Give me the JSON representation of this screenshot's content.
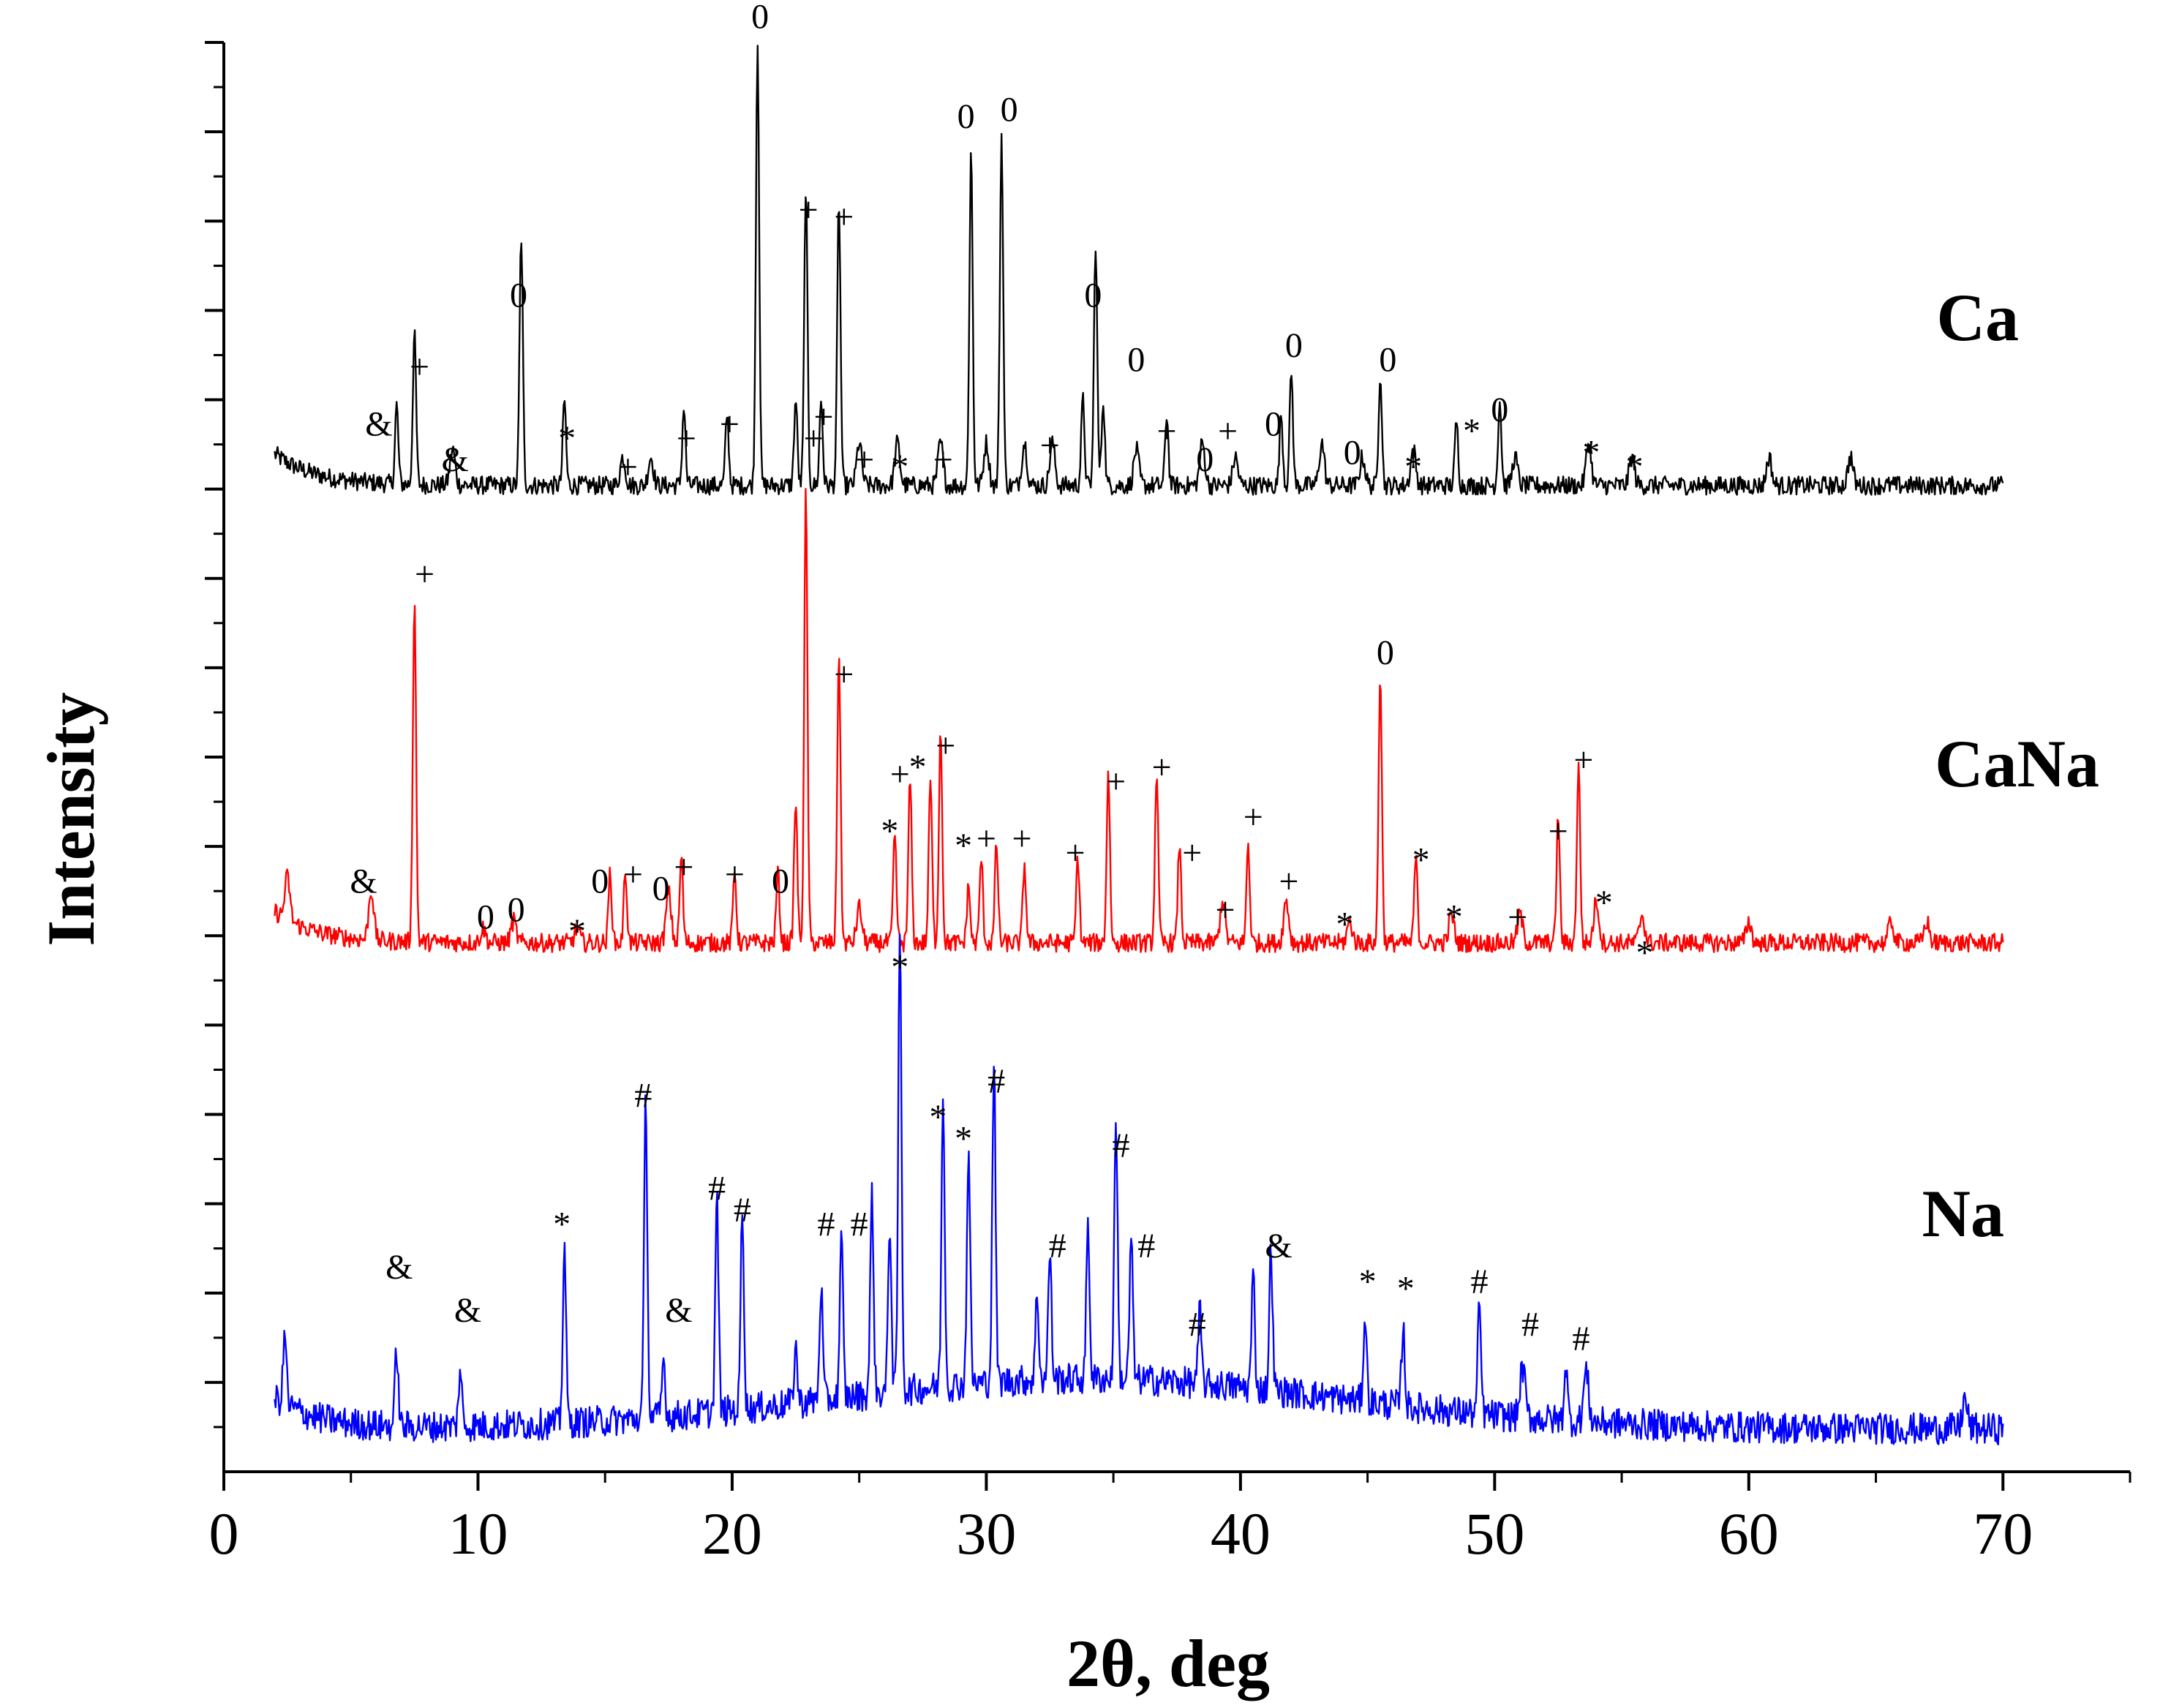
{
  "chart_data": {
    "type": "line",
    "title": "",
    "xlabel": "2θ, deg",
    "ylabel": "Intensity",
    "xlim": [
      0,
      75
    ],
    "ylim": [
      0,
      100
    ],
    "x_ticks": [
      0,
      10,
      20,
      30,
      40,
      50,
      60,
      70
    ],
    "x_tick_labels": [
      "0",
      "10",
      "20",
      "30",
      "40",
      "50",
      "60",
      "70"
    ],
    "y_ticks_major_count": 16,
    "legend": "none",
    "series": [
      {
        "name": "Ca",
        "color": "#000000",
        "baseline": 69,
        "x_range": [
          2,
          70
        ],
        "peaks": [
          {
            "x": 6.8,
            "h": 5.5
          },
          {
            "x": 7.5,
            "h": 10.5
          },
          {
            "x": 9.0,
            "h": 2.5
          },
          {
            "x": 11.7,
            "h": 17.5
          },
          {
            "x": 13.4,
            "h": 6
          },
          {
            "x": 15.7,
            "h": 2
          },
          {
            "x": 16.8,
            "h": 2
          },
          {
            "x": 18.1,
            "h": 5.5
          },
          {
            "x": 19.8,
            "h": 5
          },
          {
            "x": 21.0,
            "h": 31
          },
          {
            "x": 22.5,
            "h": 6
          },
          {
            "x": 22.9,
            "h": 21
          },
          {
            "x": 23.5,
            "h": 6
          },
          {
            "x": 24.2,
            "h": 20
          },
          {
            "x": 25.0,
            "h": 3
          },
          {
            "x": 26.5,
            "h": 3
          },
          {
            "x": 28.2,
            "h": 3
          },
          {
            "x": 29.4,
            "h": 23.5
          },
          {
            "x": 30.0,
            "h": 3
          },
          {
            "x": 30.6,
            "h": 24.5
          },
          {
            "x": 31.5,
            "h": 3
          },
          {
            "x": 32.6,
            "h": 3
          },
          {
            "x": 33.8,
            "h": 6
          },
          {
            "x": 34.3,
            "h": 17
          },
          {
            "x": 34.6,
            "h": 6
          },
          {
            "x": 35.9,
            "h": 2.5
          },
          {
            "x": 37.1,
            "h": 5
          },
          {
            "x": 38.5,
            "h": 3
          },
          {
            "x": 39.8,
            "h": 2
          },
          {
            "x": 41.6,
            "h": 5
          },
          {
            "x": 42.0,
            "h": 8
          },
          {
            "x": 43.2,
            "h": 3
          },
          {
            "x": 44.8,
            "h": 2
          },
          {
            "x": 45.5,
            "h": 8
          },
          {
            "x": 46.8,
            "h": 2.5
          },
          {
            "x": 48.5,
            "h": 4.5
          },
          {
            "x": 50.2,
            "h": 6
          },
          {
            "x": 50.8,
            "h": 2
          },
          {
            "x": 53.7,
            "h": 3
          },
          {
            "x": 55.4,
            "h": 2
          },
          {
            "x": 60.8,
            "h": 2
          },
          {
            "x": 64.0,
            "h": 2
          }
        ]
      },
      {
        "name": "CaNa",
        "color": "#ff0000",
        "baseline": 37,
        "x_range": [
          2,
          70
        ],
        "peaks": [
          {
            "x": 2.5,
            "h": 3
          },
          {
            "x": 5.8,
            "h": 3.5
          },
          {
            "x": 7.5,
            "h": 24
          },
          {
            "x": 10.2,
            "h": 1
          },
          {
            "x": 11.4,
            "h": 1.5
          },
          {
            "x": 13.9,
            "h": 1
          },
          {
            "x": 15.2,
            "h": 5
          },
          {
            "x": 15.8,
            "h": 5
          },
          {
            "x": 17.5,
            "h": 3.5
          },
          {
            "x": 18.0,
            "h": 6
          },
          {
            "x": 20.1,
            "h": 5
          },
          {
            "x": 21.8,
            "h": 5
          },
          {
            "x": 22.5,
            "h": 10
          },
          {
            "x": 22.9,
            "h": 31.5
          },
          {
            "x": 24.2,
            "h": 20.5
          },
          {
            "x": 25.0,
            "h": 2.5
          },
          {
            "x": 26.4,
            "h": 7.5
          },
          {
            "x": 27.0,
            "h": 11.5
          },
          {
            "x": 27.8,
            "h": 11.5
          },
          {
            "x": 28.2,
            "h": 15
          },
          {
            "x": 29.3,
            "h": 4
          },
          {
            "x": 29.8,
            "h": 6
          },
          {
            "x": 30.4,
            "h": 7
          },
          {
            "x": 31.5,
            "h": 5.5
          },
          {
            "x": 33.6,
            "h": 6
          },
          {
            "x": 34.8,
            "h": 12
          },
          {
            "x": 36.7,
            "h": 12
          },
          {
            "x": 37.6,
            "h": 7
          },
          {
            "x": 39.3,
            "h": 3
          },
          {
            "x": 40.3,
            "h": 7
          },
          {
            "x": 41.8,
            "h": 3
          },
          {
            "x": 44.3,
            "h": 1.5
          },
          {
            "x": 45.5,
            "h": 19
          },
          {
            "x": 46.9,
            "h": 6
          },
          {
            "x": 48.3,
            "h": 2
          },
          {
            "x": 51.0,
            "h": 2
          },
          {
            "x": 52.5,
            "h": 9
          },
          {
            "x": 53.3,
            "h": 12.5
          },
          {
            "x": 54.0,
            "h": 3
          },
          {
            "x": 55.8,
            "h": 2
          },
          {
            "x": 60.0,
            "h": 1.5
          },
          {
            "x": 65.6,
            "h": 1.5
          },
          {
            "x": 67.0,
            "h": 1.5
          }
        ]
      },
      {
        "name": "Na",
        "color": "#0000ff",
        "baseline": 3,
        "x_range": [
          2,
          70
        ],
        "peaks": [
          {
            "x": 2.4,
            "h": 5
          },
          {
            "x": 6.8,
            "h": 5.5
          },
          {
            "x": 9.3,
            "h": 4
          },
          {
            "x": 13.4,
            "h": 12.5
          },
          {
            "x": 16.6,
            "h": 22.5
          },
          {
            "x": 17.3,
            "h": 4
          },
          {
            "x": 19.4,
            "h": 15
          },
          {
            "x": 20.4,
            "h": 14
          },
          {
            "x": 22.5,
            "h": 4
          },
          {
            "x": 23.5,
            "h": 8
          },
          {
            "x": 24.3,
            "h": 11
          },
          {
            "x": 25.5,
            "h": 14
          },
          {
            "x": 26.2,
            "h": 12
          },
          {
            "x": 26.6,
            "h": 32
          },
          {
            "x": 28.3,
            "h": 20.5
          },
          {
            "x": 29.3,
            "h": 16.5
          },
          {
            "x": 30.3,
            "h": 22.5
          },
          {
            "x": 32.0,
            "h": 6
          },
          {
            "x": 32.5,
            "h": 9
          },
          {
            "x": 34.0,
            "h": 11
          },
          {
            "x": 35.1,
            "h": 18.5
          },
          {
            "x": 35.7,
            "h": 10
          },
          {
            "x": 38.4,
            "h": 5
          },
          {
            "x": 40.5,
            "h": 8
          },
          {
            "x": 41.2,
            "h": 10
          },
          {
            "x": 44.9,
            "h": 6
          },
          {
            "x": 46.4,
            "h": 5.5
          },
          {
            "x": 49.4,
            "h": 7.5
          },
          {
            "x": 51.1,
            "h": 3.5
          },
          {
            "x": 52.8,
            "h": 4
          },
          {
            "x": 53.6,
            "h": 3.5
          },
          {
            "x": 68.5,
            "h": 2
          }
        ]
      }
    ],
    "series_labels": [
      "Ca",
      "CaNa",
      "Na"
    ],
    "annotations": [
      {
        "text": "&",
        "x": 6.1,
        "y": 72.5
      },
      {
        "text": "+",
        "x": 7.7,
        "y": 76.5
      },
      {
        "text": "&",
        "x": 9.1,
        "y": 70.0
      },
      {
        "text": "0",
        "x": 11.6,
        "y": 81.5
      },
      {
        "text": "*",
        "x": 13.5,
        "y": 71.5
      },
      {
        "text": "+",
        "x": 15.9,
        "y": 69.5
      },
      {
        "text": "+",
        "x": 18.2,
        "y": 71.5
      },
      {
        "text": "+",
        "x": 19.9,
        "y": 72.5
      },
      {
        "text": "0",
        "x": 21.1,
        "y": 101.0
      },
      {
        "text": "+",
        "x": 23.0,
        "y": 87.5
      },
      {
        "text": "+",
        "x": 23.6,
        "y": 73.0
      },
      {
        "text": "+",
        "x": 24.4,
        "y": 87.0
      },
      {
        "text": "+",
        "x": 25.2,
        "y": 70.0
      },
      {
        "text": "*",
        "x": 26.6,
        "y": 69.5
      },
      {
        "text": "+",
        "x": 28.3,
        "y": 70.0
      },
      {
        "text": "0",
        "x": 29.2,
        "y": 94.0
      },
      {
        "text": "0",
        "x": 30.9,
        "y": 94.5
      },
      {
        "text": "+",
        "x": 32.5,
        "y": 71.0
      },
      {
        "text": "0",
        "x": 34.2,
        "y": 81.5
      },
      {
        "text": "0",
        "x": 35.9,
        "y": 77.0
      },
      {
        "text": "+",
        "x": 37.1,
        "y": 72.0
      },
      {
        "text": "+",
        "x": 39.5,
        "y": 72.0
      },
      {
        "text": "0",
        "x": 38.6,
        "y": 70.0
      },
      {
        "text": "0",
        "x": 41.3,
        "y": 72.5
      },
      {
        "text": "0",
        "x": 42.1,
        "y": 78.0
      },
      {
        "text": "0",
        "x": 44.4,
        "y": 70.5
      },
      {
        "text": "0",
        "x": 45.8,
        "y": 77.0
      },
      {
        "text": "*",
        "x": 46.8,
        "y": 69.5
      },
      {
        "text": "*",
        "x": 49.1,
        "y": 72.0
      },
      {
        "text": "0",
        "x": 50.2,
        "y": 73.5
      },
      {
        "text": "*",
        "x": 53.8,
        "y": 70.5
      },
      {
        "text": "*",
        "x": 55.5,
        "y": 69.5
      },
      {
        "text": "&",
        "x": 5.5,
        "y": 40.5
      },
      {
        "text": "+",
        "x": 7.9,
        "y": 62.0
      },
      {
        "text": "0",
        "x": 10.3,
        "y": 38.0
      },
      {
        "text": "0",
        "x": 11.5,
        "y": 38.5
      },
      {
        "text": "*",
        "x": 13.9,
        "y": 37.0
      },
      {
        "text": "0",
        "x": 14.8,
        "y": 40.5
      },
      {
        "text": "+",
        "x": 16.1,
        "y": 41.0
      },
      {
        "text": "0",
        "x": 17.2,
        "y": 40.0
      },
      {
        "text": "+",
        "x": 18.1,
        "y": 41.5
      },
      {
        "text": "+",
        "x": 20.1,
        "y": 41.0
      },
      {
        "text": "0",
        "x": 21.9,
        "y": 40.5
      },
      {
        "text": "+",
        "x": 23.2,
        "y": 71.5
      },
      {
        "text": "+",
        "x": 24.4,
        "y": 55.0
      },
      {
        "text": "*",
        "x": 26.2,
        "y": 44.0
      },
      {
        "text": "+",
        "x": 26.6,
        "y": 48.0
      },
      {
        "text": "*",
        "x": 27.3,
        "y": 48.5
      },
      {
        "text": "+",
        "x": 28.4,
        "y": 50.0
      },
      {
        "text": "*",
        "x": 29.1,
        "y": 43.0
      },
      {
        "text": "+",
        "x": 30.0,
        "y": 43.5
      },
      {
        "text": "+",
        "x": 31.4,
        "y": 43.5
      },
      {
        "text": "+",
        "x": 33.5,
        "y": 42.5
      },
      {
        "text": "+",
        "x": 35.1,
        "y": 47.5
      },
      {
        "text": "+",
        "x": 36.9,
        "y": 48.5
      },
      {
        "text": "+",
        "x": 38.1,
        "y": 42.5
      },
      {
        "text": "+",
        "x": 39.4,
        "y": 38.5
      },
      {
        "text": "+",
        "x": 40.5,
        "y": 45.0
      },
      {
        "text": "+",
        "x": 41.9,
        "y": 40.5
      },
      {
        "text": "*",
        "x": 44.1,
        "y": 37.5
      },
      {
        "text": "0",
        "x": 45.7,
        "y": 56.5
      },
      {
        "text": "*",
        "x": 47.1,
        "y": 42.0
      },
      {
        "text": "*",
        "x": 48.4,
        "y": 38.0
      },
      {
        "text": "+",
        "x": 50.9,
        "y": 38.0
      },
      {
        "text": "+",
        "x": 52.5,
        "y": 44.0
      },
      {
        "text": "+",
        "x": 53.5,
        "y": 49.0
      },
      {
        "text": "*",
        "x": 54.3,
        "y": 39.0
      },
      {
        "text": "*",
        "x": 55.9,
        "y": 35.5
      },
      {
        "text": "&",
        "x": 6.9,
        "y": 13.5
      },
      {
        "text": "&",
        "x": 9.6,
        "y": 10.5
      },
      {
        "text": "*",
        "x": 13.3,
        "y": 16.5
      },
      {
        "text": "#",
        "x": 16.5,
        "y": 25.5
      },
      {
        "text": "&",
        "x": 17.9,
        "y": 10.5
      },
      {
        "text": "#",
        "x": 19.4,
        "y": 19.0
      },
      {
        "text": "#",
        "x": 20.4,
        "y": 17.5
      },
      {
        "text": "#",
        "x": 23.7,
        "y": 16.5
      },
      {
        "text": "#",
        "x": 25.0,
        "y": 16.5
      },
      {
        "text": "*",
        "x": 26.6,
        "y": 34.5
      },
      {
        "text": "*",
        "x": 28.1,
        "y": 24.0
      },
      {
        "text": "*",
        "x": 29.1,
        "y": 22.5
      },
      {
        "text": "#",
        "x": 30.4,
        "y": 26.5
      },
      {
        "text": "#",
        "x": 32.8,
        "y": 15.0
      },
      {
        "text": "#",
        "x": 35.3,
        "y": 22.0
      },
      {
        "text": "#",
        "x": 36.3,
        "y": 15.0
      },
      {
        "text": "#",
        "x": 38.3,
        "y": 9.5
      },
      {
        "text": "&",
        "x": 41.5,
        "y": 15.0
      },
      {
        "text": "*",
        "x": 45.0,
        "y": 12.5
      },
      {
        "text": "*",
        "x": 46.5,
        "y": 12.0
      },
      {
        "text": "#",
        "x": 49.4,
        "y": 12.5
      },
      {
        "text": "#",
        "x": 51.4,
        "y": 9.5
      },
      {
        "text": "#",
        "x": 53.4,
        "y": 8.5
      }
    ]
  }
}
